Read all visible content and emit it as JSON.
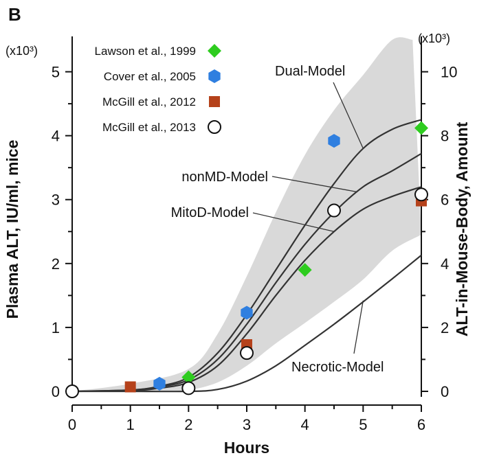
{
  "chart_data": {
    "type": "scatter",
    "panel_label": "B",
    "xlabel": "Hours",
    "ylabel": "Plasma ALT, IU/ml, mice",
    "ylabel_right": "ALT-in-Mouse-Body, Amount",
    "y_multiplier": "(x10³)",
    "y_multiplier_right": "(x10³)",
    "xlim": [
      0,
      6
    ],
    "ylim": [
      0,
      5.5
    ],
    "ylim_right": [
      0,
      11
    ],
    "xticks": [
      "0",
      "1",
      "2",
      "3",
      "4",
      "5",
      "6"
    ],
    "yticks": [
      "0",
      "1",
      "2",
      "3",
      "4",
      "5"
    ],
    "yticks_right": [
      "0",
      "2",
      "4",
      "6",
      "8",
      "10"
    ],
    "grid": false,
    "legend_position": "top-left",
    "series": [
      {
        "name": "Lawson et al., 1999",
        "marker": "diamond",
        "color": "#2ecc1f",
        "x": [
          2,
          4,
          6
        ],
        "y": [
          0.22,
          1.9,
          4.12
        ]
      },
      {
        "name": "Cover et al., 2005",
        "marker": "hexagon",
        "color": "#2f7fe0",
        "x": [
          1.5,
          3,
          4.5
        ],
        "y": [
          0.12,
          1.23,
          3.92
        ]
      },
      {
        "name": "McGill et al., 2012",
        "marker": "square",
        "color": "#b5421b",
        "x": [
          1,
          3,
          6
        ],
        "y": [
          0.07,
          0.73,
          2.98
        ]
      },
      {
        "name": "McGill et al., 2013",
        "marker": "circle",
        "color": "#ffffff",
        "x": [
          0,
          2,
          3,
          4.5,
          6
        ],
        "y": [
          0.0,
          0.05,
          0.6,
          2.83,
          3.08
        ]
      }
    ],
    "models": [
      {
        "name": "Dual-Model",
        "x": [
          0,
          1,
          1.5,
          2,
          2.5,
          3,
          3.5,
          4,
          4.5,
          5,
          5.5,
          6
        ],
        "y": [
          0,
          0.02,
          0.08,
          0.22,
          0.6,
          1.2,
          1.9,
          2.6,
          3.25,
          3.8,
          4.1,
          4.25
        ]
      },
      {
        "name": "nonMD-Model",
        "x": [
          0,
          1,
          1.5,
          2,
          2.5,
          3,
          3.5,
          4,
          4.5,
          5,
          5.5,
          6
        ],
        "y": [
          0,
          0.02,
          0.07,
          0.18,
          0.5,
          1.05,
          1.7,
          2.3,
          2.8,
          3.2,
          3.45,
          3.72
        ]
      },
      {
        "name": "MitoD-Model",
        "x": [
          0,
          1,
          1.5,
          2,
          2.5,
          3,
          3.5,
          4,
          4.5,
          5,
          5.5,
          6
        ],
        "y": [
          0,
          0.01,
          0.05,
          0.14,
          0.4,
          0.9,
          1.5,
          2.05,
          2.5,
          2.85,
          3.05,
          3.2
        ]
      },
      {
        "name": "Necrotic-Model",
        "x": [
          0,
          1,
          2,
          2.5,
          3,
          3.5,
          4,
          4.5,
          5,
          5.5,
          6
        ],
        "y": [
          0,
          0,
          0,
          0.03,
          0.16,
          0.4,
          0.72,
          1.05,
          1.4,
          1.76,
          2.13
        ]
      }
    ],
    "band": {
      "upper": {
        "x": [
          0,
          1,
          2,
          2.5,
          3,
          3.5,
          4,
          4.5,
          5,
          5.5,
          5.85
        ],
        "y": [
          0,
          0.12,
          0.35,
          0.9,
          1.8,
          2.8,
          3.7,
          4.4,
          4.95,
          5.5,
          5.5
        ]
      },
      "lower": {
        "x": [
          6,
          5.5,
          5,
          4.5,
          4,
          3.5,
          3,
          2.5,
          2,
          1.5,
          1,
          0
        ],
        "y": [
          2.45,
          2.2,
          1.75,
          1.4,
          1.07,
          0.75,
          0.4,
          0.14,
          0.02,
          0.0,
          0.0,
          0.0
        ]
      }
    }
  }
}
